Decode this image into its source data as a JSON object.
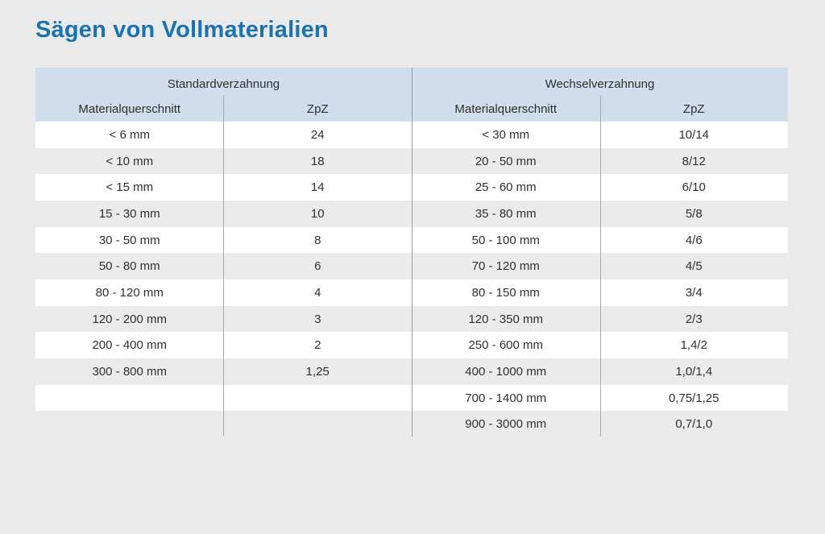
{
  "page_title": "Sägen von Vollmaterialien",
  "table": {
    "group_headers": [
      "Standardverzahnung",
      "Wechselverzahnung"
    ],
    "column_headers": [
      "Materialquerschnitt",
      "ZpZ",
      "Materialquerschnitt",
      "ZpZ"
    ],
    "rows": [
      [
        "< 6 mm",
        "24",
        "< 30 mm",
        "10/14"
      ],
      [
        "< 10 mm",
        "18",
        "20 - 50 mm",
        "8/12"
      ],
      [
        "< 15 mm",
        "14",
        "25 - 60 mm",
        "6/10"
      ],
      [
        "15 - 30 mm",
        "10",
        "35 - 80 mm",
        "5/8"
      ],
      [
        "30 - 50 mm",
        "8",
        "50 - 100 mm",
        "4/6"
      ],
      [
        "50 - 80 mm",
        "6",
        "70 - 120 mm",
        "4/5"
      ],
      [
        "80 - 120 mm",
        "4",
        "80 - 150 mm",
        "3/4"
      ],
      [
        "120 - 200 mm",
        "3",
        "120 - 350 mm",
        "2/3"
      ],
      [
        "200 - 400 mm",
        "2",
        "250 - 600 mm",
        "1,4/2"
      ],
      [
        "300 - 800 mm",
        "1,25",
        "400 - 1000 mm",
        "1,0/1,4"
      ],
      [
        "",
        "",
        "700 - 1400 mm",
        "0,75/1,25"
      ],
      [
        "",
        "",
        "900 - 3000 mm",
        "0,7/1,0"
      ]
    ]
  },
  "colors": {
    "title_blue": "#1a73b0",
    "header_bg": "#cfddec",
    "row_alt_bg": "#ebebeb",
    "page_bg": "#e9eae9",
    "divider": "#9b9b9b"
  }
}
